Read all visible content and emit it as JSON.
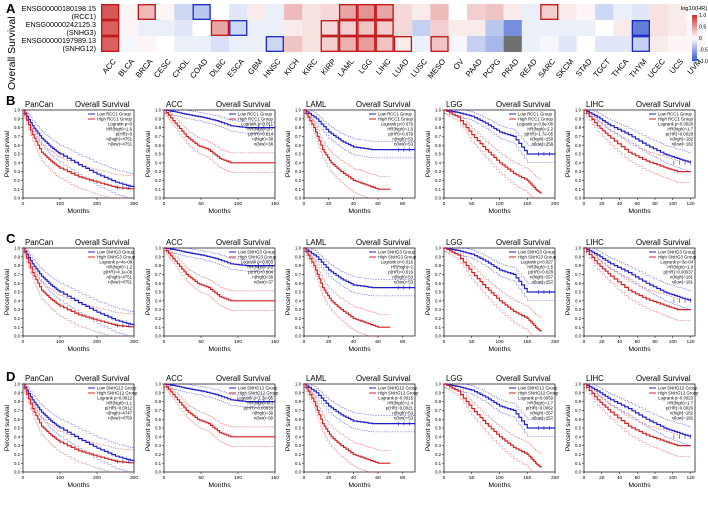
{
  "panel_letters": [
    "A",
    "B",
    "C",
    "D"
  ],
  "heatmap": {
    "side_label": "Overall Survival",
    "rows": [
      {
        "id": "ENSG00000180198.15",
        "name": "(RCC1)"
      },
      {
        "id": "ENSG00000242125.3",
        "name": "(SNHG3)"
      },
      {
        "id": "ENSG00000197989.13",
        "name": "(SNHG12)"
      }
    ],
    "cancers": [
      "ACC",
      "BLCA",
      "BRCA",
      "CESC",
      "CHOL",
      "COAD",
      "DLBC",
      "ESCA",
      "GBM",
      "HNSC",
      "KICH",
      "KIRC",
      "KIRP",
      "LAML",
      "LGG",
      "LIHC",
      "LUAD",
      "LUSC",
      "MESO",
      "OV",
      "PAAD",
      "PCPG",
      "PRAD",
      "READ",
      "SARC",
      "SKCM",
      "STAD",
      "TGCT",
      "THCA",
      "THYM",
      "UCEC",
      "UCS",
      "UVM"
    ],
    "legend_title": "log10(HR)",
    "legend_ticks": [
      "1.0",
      "0.5",
      "0",
      "-0.5",
      "-1.0"
    ]
  },
  "chart_data": {
    "type": "heatmap+survival",
    "heatmap": {
      "type": "heatmap",
      "metric": "log10(HR)",
      "range": [
        -1,
        1
      ],
      "values": [
        [
          0.85,
          0.05,
          0.35,
          0.05,
          -0.25,
          -0.35,
          0.0,
          -0.15,
          0.1,
          -0.1,
          0.35,
          0.15,
          0.2,
          0.45,
          0.55,
          0.45,
          0.2,
          0.1,
          0.35,
          0.0,
          0.25,
          0.3,
          0.1,
          -0.1,
          0.25,
          0.1,
          0.05,
          -0.25,
          -0.1,
          -0.15,
          0.15,
          0.1,
          0.0
        ],
        [
          0.8,
          0.05,
          -0.1,
          -0.1,
          -0.15,
          0.0,
          0.45,
          -0.25,
          -0.1,
          -0.1,
          0.1,
          0.15,
          0.2,
          0.25,
          0.3,
          0.25,
          0.2,
          -0.3,
          0.25,
          0.1,
          0.1,
          -0.35,
          -0.7,
          -0.1,
          -0.1,
          -0.1,
          -0.1,
          0.0,
          0.1,
          -0.8,
          0.15,
          0.1,
          -0.05
        ],
        [
          0.8,
          -0.05,
          0.05,
          0.0,
          -0.1,
          -0.1,
          -0.2,
          -0.1,
          -0.1,
          -0.25,
          0.3,
          0.15,
          0.25,
          0.4,
          0.5,
          0.3,
          0.1,
          -0.1,
          0.3,
          -0.05,
          -0.3,
          -0.45,
          -1.0,
          -0.1,
          -0.05,
          -0.15,
          0.0,
          -0.15,
          -0.15,
          -0.3,
          0.1,
          0.05,
          0.05
        ]
      ],
      "significant": [
        [
          "ACC",
          "BRCA",
          "COAD",
          "LAML",
          "LGG",
          "LIHC",
          "SARC"
        ],
        [
          "ACC",
          "DLBC",
          "ESCA",
          "KIRP",
          "LAML",
          "LGG",
          "LIHC",
          "THYM"
        ],
        [
          "ACC",
          "HNSC",
          "KIRP",
          "LAML",
          "LGG",
          "LIHC",
          "LUAD",
          "MESO",
          "THYM"
        ]
      ],
      "gray_cell": {
        "row": 2,
        "cancer": "PRAD"
      }
    },
    "survival_rows": [
      {
        "letter": "B",
        "gene": "RCC1",
        "plots": [
          {
            "title": "PanCan",
            "xmax": 300,
            "xticks": [
              0,
              100,
              200,
              300
            ],
            "stats": [
              "Logrank p=0",
              "HR(high)=1.6",
              "p(HR)=0",
              "n(high)=4751",
              "n(low)=4751"
            ]
          },
          {
            "title": "ACC",
            "xmax": 150,
            "xticks": [
              0,
              50,
              100,
              150
            ],
            "stats": [
              "Logrank p=0.011",
              "HR(high)=2.7",
              "p(HR)=0.014",
              "n(high)=38",
              "n(low)=38"
            ]
          },
          {
            "title": "LAML",
            "xmax": 90,
            "xticks": [
              0,
              20,
              40,
              60,
              80
            ],
            "stats": [
              "Logrank p=0.076",
              "HR(high)=1.6",
              "p(HR)=0.079",
              "n(high)=53",
              "n(low)=53"
            ]
          },
          {
            "title": "LGG",
            "xmax": 200,
            "xticks": [
              0,
              50,
              100,
              150,
              200
            ],
            "stats": [
              "Logrank p=3.8e-06",
              "HR(high)=2.2",
              "p(HR)=1.7e-05",
              "n(high)=258",
              "n(low)=258"
            ]
          },
          {
            "title": "LIHC",
            "xmax": 125,
            "xticks": [
              0,
              20,
              40,
              60,
              80,
              100,
              120
            ],
            "stats": [
              "Logrank p=0.0026",
              "HR(high)=1.7",
              "p(HR)=0.0028",
              "n(high)=182",
              "n(low)=182"
            ]
          }
        ]
      },
      {
        "letter": "C",
        "gene": "SNHG3",
        "plots": [
          {
            "title": "PanCan",
            "xmax": 300,
            "xticks": [
              0,
              100,
              200,
              300
            ],
            "stats": [
              "Logrank p=4e-08",
              "HR(high)=1.2",
              "p(HR)=4.1e-08",
              "n(high)=4751",
              "n(low)=4751"
            ]
          },
          {
            "title": "ACC",
            "xmax": 150,
            "xticks": [
              0,
              50,
              100,
              150
            ],
            "stats": [
              "Logrank p=0.003",
              "HR(high)=2.9",
              "p(HR)=0.004",
              "n(high)=39",
              "n(low)=37"
            ]
          },
          {
            "title": "LAML",
            "xmax": 90,
            "xticks": [
              0,
              20,
              40,
              60,
              80
            ],
            "stats": [
              "Logrank p=0.016",
              "HR(high)=2",
              "p(HR)=0.019",
              "n(high)=53",
              "n(low)=53"
            ]
          },
          {
            "title": "LGG",
            "xmax": 200,
            "xticks": [
              0,
              50,
              100,
              150,
              200
            ],
            "stats": [
              "Logrank p=0.027",
              "HR(high)=1.5",
              "p(HR)=0.028",
              "n(high)=257",
              "n(low)=257"
            ]
          },
          {
            "title": "LIHC",
            "xmax": 125,
            "xticks": [
              0,
              20,
              40,
              60,
              80,
              100,
              120
            ],
            "stats": [
              "Logrank p=3e-04",
              "HR(high)=1.9",
              "p(HR)=0.00037",
              "n(high)=181",
              "n(low)=181"
            ]
          }
        ]
      },
      {
        "letter": "D",
        "gene": "SNHG12",
        "plots": [
          {
            "title": "PanCan",
            "xmax": 300,
            "xticks": [
              0,
              100,
              200,
              300
            ],
            "stats": [
              "Logrank p=0.0012",
              "HR(high)=1.1",
              "p(HR)=0.0012",
              "n(high)=4747",
              "n(low)=4750"
            ]
          },
          {
            "title": "ACC",
            "xmax": 150,
            "xticks": [
              0,
              50,
              100,
              150
            ],
            "stats": [
              "Logrank p=1.3e-05",
              "HR(high)=6.3",
              "p(HR)=0.00033",
              "n(high)=39",
              "n(low)=39"
            ]
          },
          {
            "title": "LAML",
            "xmax": 90,
            "xticks": [
              0,
              20,
              40,
              60,
              80
            ],
            "stats": [
              "Logrank p=0.0015",
              "HR(high)=2.4",
              "p(HR)=0.0021",
              "n(high)=53",
              "n(low)=53"
            ]
          },
          {
            "title": "LGG",
            "xmax": 200,
            "xticks": [
              0,
              50,
              100,
              150,
              200
            ],
            "stats": [
              "Logrank p=0.0059",
              "HR(high)=1.7",
              "p(HR)=0.0062",
              "n(high)=257",
              "n(low)=257"
            ]
          },
          {
            "title": "LIHC",
            "xmax": 125,
            "xticks": [
              0,
              20,
              40,
              60,
              80,
              100,
              120
            ],
            "stats": [
              "Logrank p=0.0023",
              "HR(high)=1.7",
              "p(HR)=0.0026",
              "n(high)=182",
              "n(low)=182"
            ]
          }
        ]
      }
    ],
    "curves": {
      "PanCan": {
        "low": [
          [
            0,
            1
          ],
          [
            25,
            0.82
          ],
          [
            50,
            0.68
          ],
          [
            75,
            0.58
          ],
          [
            100,
            0.5
          ],
          [
            150,
            0.38
          ],
          [
            200,
            0.27
          ],
          [
            250,
            0.18
          ],
          [
            300,
            0.12
          ]
        ],
        "high": [
          [
            0,
            1
          ],
          [
            25,
            0.72
          ],
          [
            50,
            0.52
          ],
          [
            75,
            0.42
          ],
          [
            100,
            0.34
          ],
          [
            150,
            0.24
          ],
          [
            200,
            0.18
          ],
          [
            250,
            0.12
          ],
          [
            300,
            0.1
          ]
        ]
      },
      "ACC": {
        "low": [
          [
            0,
            1
          ],
          [
            15,
            0.98
          ],
          [
            30,
            0.95
          ],
          [
            50,
            0.92
          ],
          [
            70,
            0.88
          ],
          [
            90,
            0.82
          ],
          [
            110,
            0.8
          ],
          [
            130,
            0.8
          ],
          [
            150,
            0.8
          ]
        ],
        "high": [
          [
            0,
            1
          ],
          [
            15,
            0.85
          ],
          [
            30,
            0.7
          ],
          [
            45,
            0.6
          ],
          [
            60,
            0.55
          ],
          [
            75,
            0.45
          ],
          [
            90,
            0.4
          ],
          [
            120,
            0.4
          ],
          [
            150,
            0.4
          ]
        ]
      },
      "LAML": {
        "low": [
          [
            0,
            1
          ],
          [
            10,
            0.9
          ],
          [
            20,
            0.75
          ],
          [
            30,
            0.65
          ],
          [
            40,
            0.58
          ],
          [
            55,
            0.55
          ],
          [
            70,
            0.55
          ],
          [
            90,
            0.55
          ]
        ],
        "high": [
          [
            0,
            1
          ],
          [
            8,
            0.8
          ],
          [
            15,
            0.55
          ],
          [
            22,
            0.4
          ],
          [
            30,
            0.3
          ],
          [
            40,
            0.2
          ],
          [
            50,
            0.15
          ],
          [
            60,
            0.1
          ],
          [
            70,
            0.1
          ]
        ]
      },
      "LGG": {
        "low": [
          [
            0,
            1
          ],
          [
            25,
            0.97
          ],
          [
            50,
            0.93
          ],
          [
            75,
            0.85
          ],
          [
            100,
            0.75
          ],
          [
            125,
            0.7
          ],
          [
            150,
            0.5
          ],
          [
            175,
            0.5
          ],
          [
            200,
            0.5
          ]
        ],
        "high": [
          [
            0,
            1
          ],
          [
            25,
            0.92
          ],
          [
            50,
            0.72
          ],
          [
            75,
            0.55
          ],
          [
            100,
            0.4
          ],
          [
            125,
            0.28
          ],
          [
            150,
            0.2
          ],
          [
            165,
            0.1
          ],
          [
            175,
            0.05
          ]
        ]
      },
      "LIHC": {
        "low": [
          [
            0,
            1
          ],
          [
            15,
            0.92
          ],
          [
            30,
            0.82
          ],
          [
            50,
            0.72
          ],
          [
            70,
            0.6
          ],
          [
            90,
            0.5
          ],
          [
            105,
            0.45
          ],
          [
            120,
            0.4
          ]
        ],
        "high": [
          [
            0,
            1
          ],
          [
            15,
            0.82
          ],
          [
            30,
            0.68
          ],
          [
            50,
            0.52
          ],
          [
            70,
            0.42
          ],
          [
            90,
            0.35
          ],
          [
            105,
            0.3
          ],
          [
            120,
            0.3
          ]
        ]
      }
    }
  },
  "axis": {
    "ylabel": "Percent survival",
    "xlabel": "Months",
    "yticks": [
      "1.0",
      "0.9",
      "0.8",
      "0.7",
      "0.6",
      "0.5",
      "0.4",
      "0.3",
      "0.2",
      "0.1",
      "0.0"
    ]
  },
  "plot_subtitle": "Overall Survival",
  "legend_tpl": {
    "low": "Low {gene} Group",
    "high": "High {gene} Group"
  },
  "colors": {
    "low": "#1f1fcc",
    "high": "#d42020",
    "pos": "#d03a3a",
    "neg": "#3a5fd0",
    "sigbox_pos": "#c01515",
    "sigbox_neg": "#1a2ac0"
  }
}
